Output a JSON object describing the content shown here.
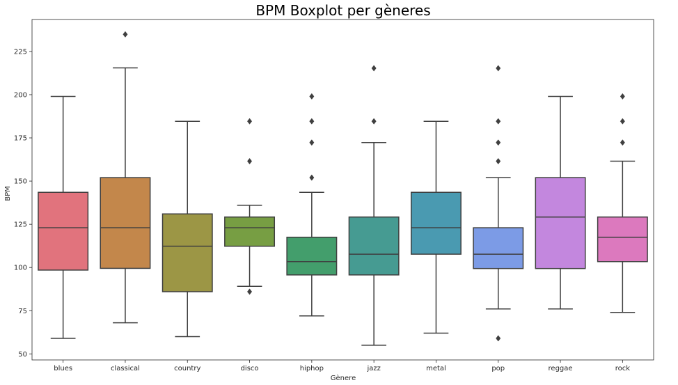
{
  "chart_data": {
    "type": "boxplot",
    "title": "BPM Boxplot per gèneres",
    "xlabel": "Gènere",
    "ylabel": "BPM",
    "ylim": [
      46.5,
      243.5
    ],
    "yticks": [
      50,
      75,
      100,
      125,
      150,
      175,
      200,
      225
    ],
    "grid": false,
    "categories": [
      "blues",
      "classical",
      "country",
      "disco",
      "hiphop",
      "jazz",
      "metal",
      "pop",
      "reggae",
      "rock"
    ],
    "series": [
      {
        "category": "blues",
        "whisker_low": 59,
        "q1": 98.5,
        "median": 123,
        "q3": 143.5,
        "whisker_high": 199,
        "outliers": [],
        "color": "#e1737d"
      },
      {
        "category": "classical",
        "whisker_low": 68,
        "q1": 99.5,
        "median": 123,
        "q3": 152,
        "whisker_high": 215.5,
        "outliers": [
          234.9
        ],
        "color": "#c3874b"
      },
      {
        "category": "country",
        "whisker_low": 60,
        "q1": 86,
        "median": 112.3,
        "q3": 131,
        "whisker_high": 184.6,
        "outliers": [],
        "color": "#9c9645"
      },
      {
        "category": "disco",
        "whisker_low": 89.1,
        "q1": 112.3,
        "median": 123,
        "q3": 129.2,
        "whisker_high": 136,
        "outliers": [
          86,
          161.5,
          184.6
        ],
        "color": "#779e43"
      },
      {
        "category": "hiphop",
        "whisker_low": 72,
        "q1": 95.7,
        "median": 103.4,
        "q3": 117.5,
        "whisker_high": 143.5,
        "outliers": [
          152,
          172.3,
          184.6,
          199
        ],
        "color": "#439e6c"
      },
      {
        "category": "jazz",
        "whisker_low": 55,
        "q1": 95.7,
        "median": 107.7,
        "q3": 129.2,
        "whisker_high": 172.3,
        "outliers": [
          184.6,
          215.3
        ],
        "color": "#469b92"
      },
      {
        "category": "metal",
        "whisker_low": 62,
        "q1": 107.7,
        "median": 123,
        "q3": 143.5,
        "whisker_high": 184.6,
        "outliers": [],
        "color": "#4a9ab1"
      },
      {
        "category": "pop",
        "whisker_low": 76,
        "q1": 99.4,
        "median": 107.7,
        "q3": 123,
        "whisker_high": 152,
        "outliers": [
          59,
          161.5,
          172.3,
          184.6,
          215.3
        ],
        "color": "#7c9be6"
      },
      {
        "category": "reggae",
        "whisker_low": 76,
        "q1": 99.4,
        "median": 129.2,
        "q3": 152,
        "whisker_high": 199,
        "outliers": [],
        "color": "#c387de"
      },
      {
        "category": "rock",
        "whisker_low": 74,
        "q1": 103.4,
        "median": 117.5,
        "q3": 129.2,
        "whisker_high": 161.5,
        "outliers": [
          172.3,
          184.6,
          199
        ],
        "color": "#dc79be"
      }
    ]
  }
}
